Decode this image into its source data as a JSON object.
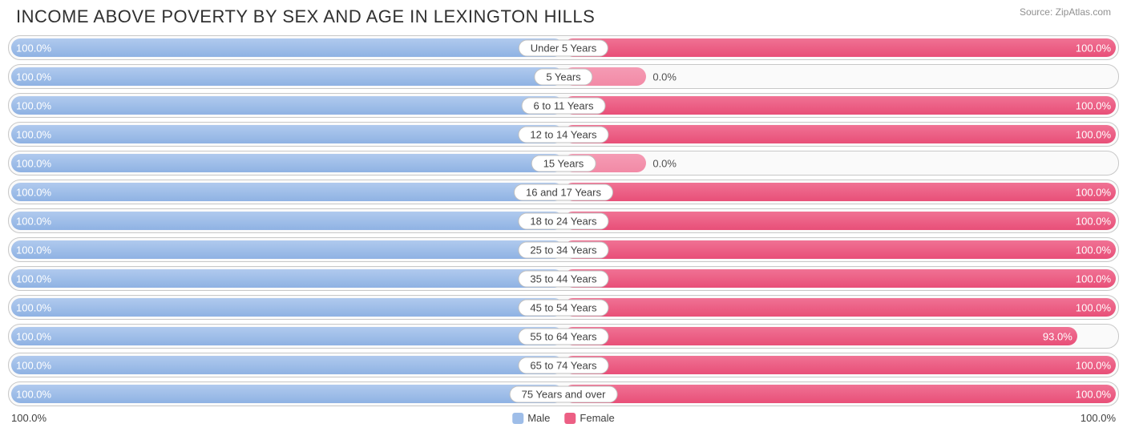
{
  "title": "INCOME ABOVE POVERTY BY SEX AND AGE IN LEXINGTON HILLS",
  "source": "Source: ZipAtlas.com",
  "chart": {
    "type": "diverging-bar",
    "male_color": "#9ebde8",
    "female_color": "#ec5f84",
    "female_partial_color": "#f28aa6",
    "track_bg": "#fafafa",
    "track_border": "#c8c8c8",
    "value_fontsize": 13,
    "label_fontsize": 13,
    "title_fontsize": 22,
    "title_color": "#303030",
    "source_color": "#909090",
    "axis_left": "100.0%",
    "axis_right": "100.0%",
    "legend": [
      {
        "label": "Male",
        "color": "#9ebde8"
      },
      {
        "label": "Female",
        "color": "#ec5f84"
      }
    ],
    "rows": [
      {
        "category": "Under 5 Years",
        "male_pct": 100.0,
        "male_label": "100.0%",
        "female_pct": 100.0,
        "female_label": "100.0%",
        "female_partial": false
      },
      {
        "category": "5 Years",
        "male_pct": 100.0,
        "male_label": "100.0%",
        "female_pct": 0.0,
        "female_label": "0.0%",
        "female_partial": true,
        "female_stub_pct": 15
      },
      {
        "category": "6 to 11 Years",
        "male_pct": 100.0,
        "male_label": "100.0%",
        "female_pct": 100.0,
        "female_label": "100.0%",
        "female_partial": false
      },
      {
        "category": "12 to 14 Years",
        "male_pct": 100.0,
        "male_label": "100.0%",
        "female_pct": 100.0,
        "female_label": "100.0%",
        "female_partial": false
      },
      {
        "category": "15 Years",
        "male_pct": 100.0,
        "male_label": "100.0%",
        "female_pct": 0.0,
        "female_label": "0.0%",
        "female_partial": true,
        "female_stub_pct": 15
      },
      {
        "category": "16 and 17 Years",
        "male_pct": 100.0,
        "male_label": "100.0%",
        "female_pct": 100.0,
        "female_label": "100.0%",
        "female_partial": false
      },
      {
        "category": "18 to 24 Years",
        "male_pct": 100.0,
        "male_label": "100.0%",
        "female_pct": 100.0,
        "female_label": "100.0%",
        "female_partial": false
      },
      {
        "category": "25 to 34 Years",
        "male_pct": 100.0,
        "male_label": "100.0%",
        "female_pct": 100.0,
        "female_label": "100.0%",
        "female_partial": false
      },
      {
        "category": "35 to 44 Years",
        "male_pct": 100.0,
        "male_label": "100.0%",
        "female_pct": 100.0,
        "female_label": "100.0%",
        "female_partial": false
      },
      {
        "category": "45 to 54 Years",
        "male_pct": 100.0,
        "male_label": "100.0%",
        "female_pct": 100.0,
        "female_label": "100.0%",
        "female_partial": false
      },
      {
        "category": "55 to 64 Years",
        "male_pct": 100.0,
        "male_label": "100.0%",
        "female_pct": 93.0,
        "female_label": "93.0%",
        "female_partial": false
      },
      {
        "category": "65 to 74 Years",
        "male_pct": 100.0,
        "male_label": "100.0%",
        "female_pct": 100.0,
        "female_label": "100.0%",
        "female_partial": false
      },
      {
        "category": "75 Years and over",
        "male_pct": 100.0,
        "male_label": "100.0%",
        "female_pct": 100.0,
        "female_label": "100.0%",
        "female_partial": false
      }
    ]
  }
}
